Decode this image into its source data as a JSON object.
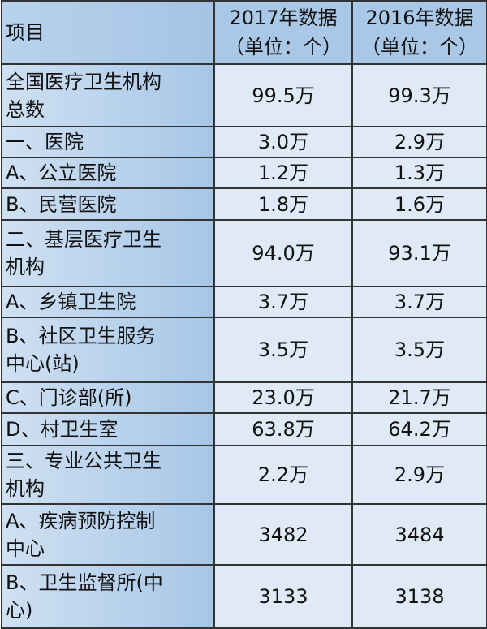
{
  "header": {
    "item": "项目",
    "col2017": [
      "2017年数据",
      "（单位：个）"
    ],
    "col2016": [
      "2016年数据",
      "（单位：个）"
    ]
  },
  "rows": [
    {
      "name": [
        "全国医疗卫生机构",
        "总数"
      ],
      "v2017": "99.5万",
      "v2016": "99.3万"
    },
    {
      "name": [
        "一、医院"
      ],
      "v2017": "3.0万",
      "v2016": "2.9万"
    },
    {
      "name": [
        "A、公立医院"
      ],
      "v2017": "1.2万",
      "v2016": "1.3万"
    },
    {
      "name": [
        "B、民营医院"
      ],
      "v2017": "1.8万",
      "v2016": "1.6万"
    },
    {
      "name": [
        "二、基层医疗卫生",
        "机构"
      ],
      "v2017": "94.0万",
      "v2016": "93.1万"
    },
    {
      "name": [
        "A、乡镇卫生院"
      ],
      "v2017": "3.7万",
      "v2016": "3.7万"
    },
    {
      "name": [
        "B、社区卫生服务",
        "中心(站)"
      ],
      "v2017": "3.5万",
      "v2016": "3.5万"
    },
    {
      "name": [
        "C、门诊部(所)"
      ],
      "v2017": "23.0万",
      "v2016": "21.7万"
    },
    {
      "name": [
        "D、村卫生室"
      ],
      "v2017": "63.8万",
      "v2016": "64.2万"
    },
    {
      "name": [
        "三、专业公共卫生",
        "机构"
      ],
      "v2017": "2.2万",
      "v2016": "2.9万"
    },
    {
      "name": [
        "A、疾病预防控制",
        "中心"
      ],
      "v2017": "3482",
      "v2016": "3484"
    },
    {
      "name": [
        "B、卫生监督所(中",
        "心)"
      ],
      "v2017": "3133",
      "v2016": "3138"
    }
  ],
  "colors": {
    "header_bg": "#a9c8e7",
    "cell_bg": "#dfeaf6",
    "border": "#333333"
  }
}
